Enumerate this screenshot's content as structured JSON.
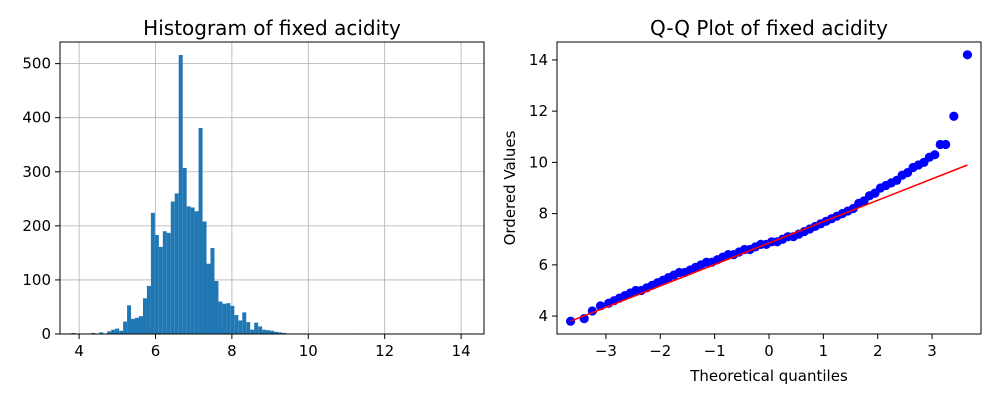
{
  "chart_data": [
    {
      "type": "bar",
      "title": "Histogram of fixed acidity",
      "xlabel": "",
      "ylabel": "",
      "xlim": [
        3.5,
        14.6
      ],
      "ylim": [
        0,
        540
      ],
      "xticks": [
        "4",
        "6",
        "8",
        "10",
        "12",
        "14"
      ],
      "yticks": [
        "0",
        "100",
        "200",
        "300",
        "400",
        "500"
      ],
      "grid": true,
      "color": "#1f77b4",
      "bin_start": 3.8,
      "bin_width": 0.104,
      "values": [
        2,
        0,
        0,
        1,
        0,
        2,
        0,
        3,
        0,
        5,
        8,
        10,
        6,
        23,
        53,
        28,
        30,
        33,
        66,
        89,
        224,
        183,
        161,
        190,
        187,
        245,
        260,
        516,
        307,
        236,
        234,
        227,
        381,
        208,
        130,
        159,
        98,
        60,
        56,
        57,
        52,
        35,
        25,
        40,
        22,
        8,
        21,
        14,
        8,
        7,
        6,
        4,
        3,
        2,
        1,
        0,
        1,
        0,
        1,
        0,
        0,
        0,
        0,
        0,
        0,
        0,
        0,
        0,
        0,
        0,
        0,
        0,
        1,
        0,
        0,
        0,
        0,
        0,
        0,
        0,
        0,
        0,
        0,
        0,
        0,
        0,
        0,
        0,
        0,
        0,
        0,
        0,
        0,
        0,
        0,
        0,
        0,
        0,
        0,
        1
      ]
    },
    {
      "type": "scatter",
      "title": "Q-Q Plot of fixed acidity",
      "xlabel": "Theoretical quantiles",
      "ylabel": "Ordered Values",
      "xlim": [
        -3.9,
        3.9
      ],
      "ylim": [
        3.3,
        14.7
      ],
      "xticks": [
        "−3",
        "−2",
        "−1",
        "0",
        "1",
        "2",
        "3"
      ],
      "yticks": [
        "4",
        "6",
        "8",
        "10",
        "12",
        "14"
      ],
      "grid": false,
      "point_color": "#0000ff",
      "line_color": "#ff0000",
      "fit_line": {
        "x": [
          -3.65,
          3.65
        ],
        "y": [
          3.8,
          9.9
        ]
      },
      "points": [
        [
          -3.65,
          3.8
        ],
        [
          -3.4,
          3.9
        ],
        [
          -3.25,
          4.2
        ],
        [
          -3.1,
          4.4
        ],
        [
          -2.95,
          4.5
        ],
        [
          -2.85,
          4.6
        ],
        [
          -2.75,
          4.7
        ],
        [
          -2.65,
          4.8
        ],
        [
          -2.55,
          4.9
        ],
        [
          -2.45,
          5.0
        ],
        [
          -2.35,
          5.0
        ],
        [
          -2.25,
          5.1
        ],
        [
          -2.15,
          5.2
        ],
        [
          -2.05,
          5.3
        ],
        [
          -1.95,
          5.4
        ],
        [
          -1.85,
          5.5
        ],
        [
          -1.75,
          5.6
        ],
        [
          -1.65,
          5.7
        ],
        [
          -1.55,
          5.7
        ],
        [
          -1.45,
          5.8
        ],
        [
          -1.35,
          5.9
        ],
        [
          -1.25,
          6.0
        ],
        [
          -1.15,
          6.1
        ],
        [
          -1.05,
          6.1
        ],
        [
          -0.95,
          6.2
        ],
        [
          -0.85,
          6.3
        ],
        [
          -0.75,
          6.4
        ],
        [
          -0.65,
          6.4
        ],
        [
          -0.55,
          6.5
        ],
        [
          -0.45,
          6.6
        ],
        [
          -0.35,
          6.6
        ],
        [
          -0.25,
          6.7
        ],
        [
          -0.15,
          6.8
        ],
        [
          -0.05,
          6.8
        ],
        [
          0.05,
          6.9
        ],
        [
          0.15,
          6.9
        ],
        [
          0.25,
          7.0
        ],
        [
          0.35,
          7.1
        ],
        [
          0.45,
          7.1
        ],
        [
          0.55,
          7.2
        ],
        [
          0.65,
          7.3
        ],
        [
          0.75,
          7.4
        ],
        [
          0.85,
          7.5
        ],
        [
          0.95,
          7.6
        ],
        [
          1.05,
          7.7
        ],
        [
          1.15,
          7.8
        ],
        [
          1.25,
          7.9
        ],
        [
          1.35,
          8.0
        ],
        [
          1.45,
          8.1
        ],
        [
          1.55,
          8.2
        ],
        [
          1.65,
          8.4
        ],
        [
          1.75,
          8.5
        ],
        [
          1.85,
          8.7
        ],
        [
          1.95,
          8.8
        ],
        [
          2.05,
          9.0
        ],
        [
          2.15,
          9.1
        ],
        [
          2.25,
          9.2
        ],
        [
          2.35,
          9.3
        ],
        [
          2.45,
          9.5
        ],
        [
          2.55,
          9.6
        ],
        [
          2.65,
          9.8
        ],
        [
          2.75,
          9.9
        ],
        [
          2.85,
          10.0
        ],
        [
          2.95,
          10.2
        ],
        [
          3.05,
          10.3
        ],
        [
          3.15,
          10.7
        ],
        [
          3.25,
          10.7
        ],
        [
          3.4,
          11.8
        ],
        [
          3.65,
          14.2
        ]
      ]
    }
  ]
}
